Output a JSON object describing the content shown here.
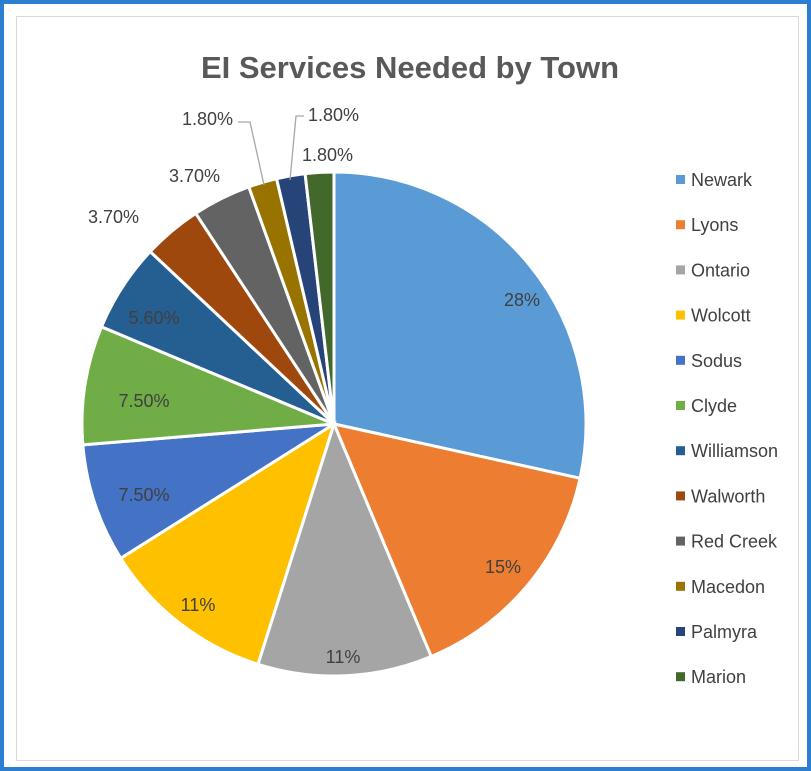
{
  "chart_data": {
    "type": "pie",
    "title": "EI Services Needed by Town",
    "categories": [
      "Newark",
      "Lyons",
      "Ontario",
      "Wolcott",
      "Sodus",
      "Clyde",
      "Williamson",
      "Walworth",
      "Red Creek",
      "Macedon",
      "Palmyra",
      "Marion"
    ],
    "values": [
      28,
      15,
      11,
      11,
      7.5,
      7.5,
      5.6,
      3.7,
      3.7,
      1.8,
      1.8,
      1.8
    ],
    "data_labels": [
      "28%",
      "15%",
      "11%",
      "11%",
      "7.50%",
      "7.50%",
      "5.60%",
      "3.70%",
      "3.70%",
      "1.80%",
      "1.80%",
      "1.80%"
    ],
    "colors": [
      "#5b9bd5",
      "#ed7d31",
      "#a5a5a5",
      "#ffc000",
      "#4472c4",
      "#70ad47",
      "#255e91",
      "#9e480e",
      "#636363",
      "#997300",
      "#264478",
      "#43682b"
    ],
    "legend_position": "right"
  }
}
